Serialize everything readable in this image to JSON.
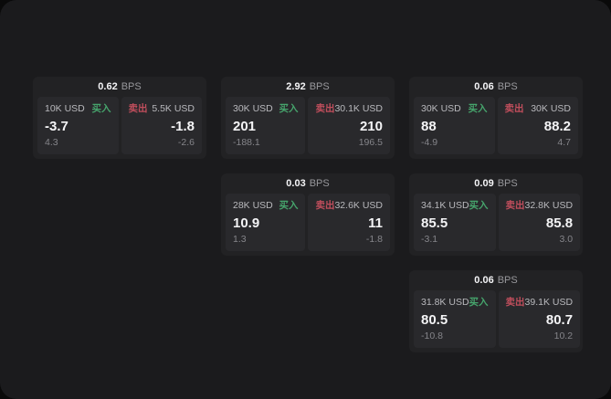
{
  "theme": {
    "page_bg": "#0a0a0a",
    "panel_bg": "#1b1b1d",
    "card_bg": "#222224",
    "tile_bg": "#29292c",
    "text_primary": "#f4f4f6",
    "text_secondary": "#b9b9bd",
    "text_dim": "#85858a",
    "buy_color": "#46a46c",
    "sell_color": "#c04e5c"
  },
  "labels": {
    "bps_suffix": "BPS",
    "buy": "买入",
    "sell": "卖出"
  },
  "cards": [
    {
      "bps": "0.62",
      "row": 1,
      "col": 1,
      "buy": {
        "amount": "10K USD",
        "price": "-3.7",
        "delta": "4.3"
      },
      "sell": {
        "amount": "5.5K USD",
        "price": "-1.8",
        "delta": "-2.6"
      }
    },
    {
      "bps": "2.92",
      "row": 1,
      "col": 2,
      "buy": {
        "amount": "30K USD",
        "price": "201",
        "delta": "-188.1"
      },
      "sell": {
        "amount": "30.1K USD",
        "price": "210",
        "delta": "196.5"
      }
    },
    {
      "bps": "0.06",
      "row": 1,
      "col": 3,
      "buy": {
        "amount": "30K USD",
        "price": "88",
        "delta": "-4.9"
      },
      "sell": {
        "amount": "30K USD",
        "price": "88.2",
        "delta": "4.7"
      }
    },
    {
      "bps": "0.03",
      "row": 2,
      "col": 2,
      "buy": {
        "amount": "28K USD",
        "price": "10.9",
        "delta": "1.3"
      },
      "sell": {
        "amount": "32.6K USD",
        "price": "11",
        "delta": "-1.8"
      }
    },
    {
      "bps": "0.09",
      "row": 2,
      "col": 3,
      "buy": {
        "amount": "34.1K USD",
        "price": "85.5",
        "delta": "-3.1"
      },
      "sell": {
        "amount": "32.8K USD",
        "price": "85.8",
        "delta": "3.0"
      }
    },
    {
      "bps": "0.06",
      "row": 3,
      "col": 3,
      "buy": {
        "amount": "31.8K USD",
        "price": "80.5",
        "delta": "-10.8"
      },
      "sell": {
        "amount": "39.1K USD",
        "price": "80.7",
        "delta": "10.2"
      }
    }
  ]
}
